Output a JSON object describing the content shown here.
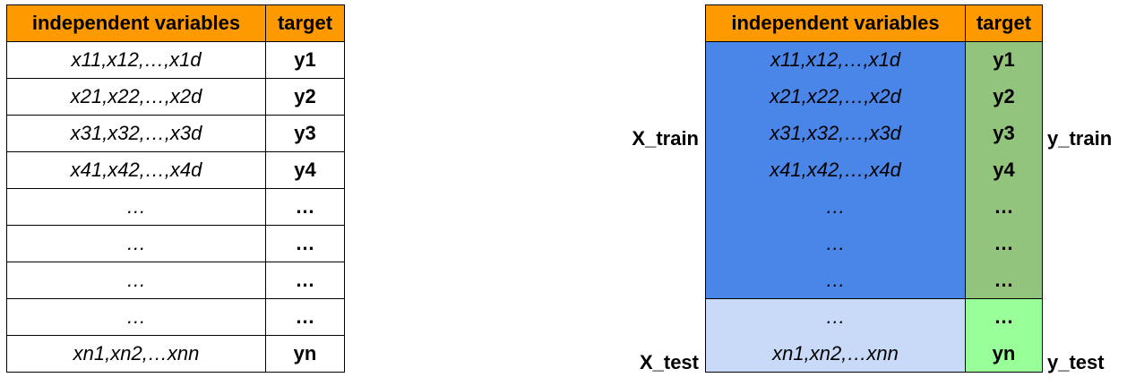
{
  "headers": {
    "features": "independent variables",
    "target": "target"
  },
  "rows": [
    {
      "features": "x11,x12,…,x1d",
      "target": "y1"
    },
    {
      "features": "x21,x22,…,x2d",
      "target": "y2"
    },
    {
      "features": "x31,x32,…,x3d",
      "target": "y3"
    },
    {
      "features": "x41,x42,…,x4d",
      "target": "y4"
    },
    {
      "features": "…",
      "target": "…"
    },
    {
      "features": "…",
      "target": "…"
    },
    {
      "features": "…",
      "target": "…"
    },
    {
      "features": "…",
      "target": "…"
    },
    {
      "features": "xn1,xn2,…xnn",
      "target": "yn"
    }
  ],
  "labels": {
    "x_train": "X_train",
    "y_train": "y_train",
    "x_test": "X_test",
    "y_test": "y_test"
  },
  "colors": {
    "header": "#ff9900",
    "train_features": "#4a86e8",
    "train_target": "#93c47d",
    "test_features": "#c9daf8",
    "test_target": "#99ff99"
  }
}
